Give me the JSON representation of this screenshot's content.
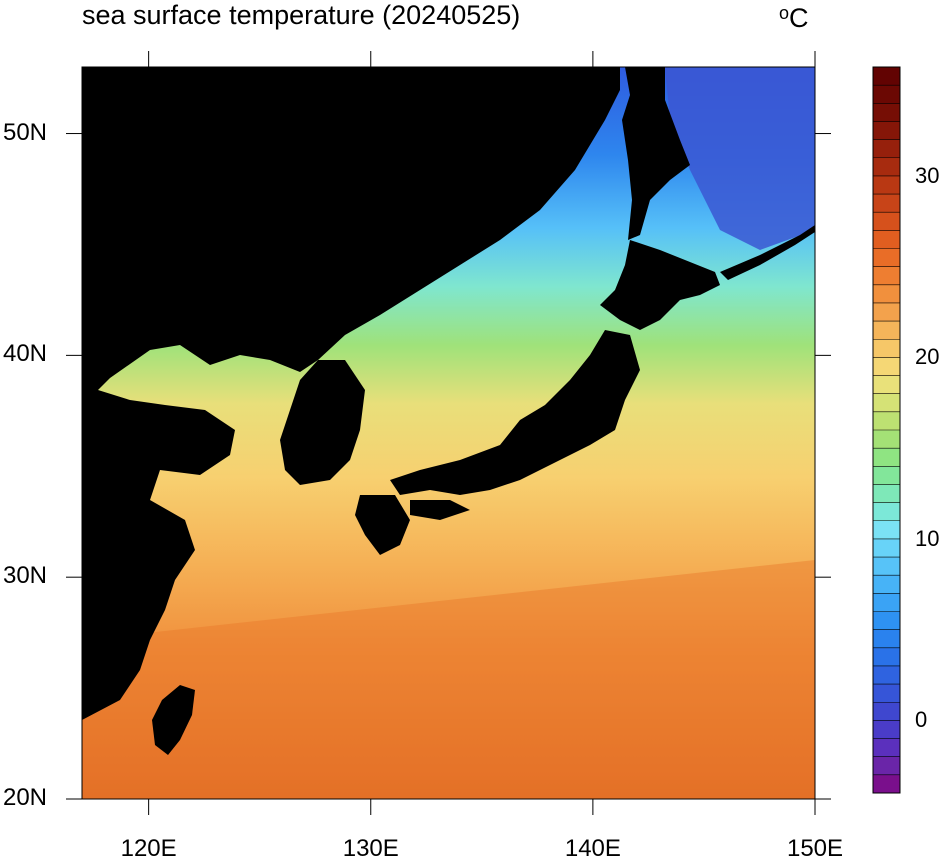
{
  "title": "sea surface temperature (20240525)",
  "units": {
    "degree_symbol": "o",
    "letter": "C"
  },
  "map": {
    "lon_range": [
      117,
      150
    ],
    "lat_range": [
      20,
      53
    ],
    "land_color": "#000000",
    "lat_ticks": [
      {
        "value": 20,
        "label": "20N"
      },
      {
        "value": 30,
        "label": "30N"
      },
      {
        "value": 40,
        "label": "40N"
      },
      {
        "value": 50,
        "label": "50N"
      }
    ],
    "lon_ticks": [
      {
        "value": 120,
        "label": "120E"
      },
      {
        "value": 130,
        "label": "130E"
      },
      {
        "value": 140,
        "label": "140E"
      },
      {
        "value": 150,
        "label": "150E"
      }
    ]
  },
  "colorbar": {
    "min": -4,
    "max": 36,
    "labels": [
      {
        "value": 0,
        "label": "0"
      },
      {
        "value": 10,
        "label": "10"
      },
      {
        "value": 20,
        "label": "20"
      },
      {
        "value": 30,
        "label": "30"
      }
    ],
    "colors": [
      "#7a0f8c",
      "#6a25a8",
      "#5b30bd",
      "#4a3cc8",
      "#3f47cf",
      "#3655d8",
      "#2f63e0",
      "#2a72e8",
      "#2a82ee",
      "#2e92f2",
      "#3aa3f5",
      "#47b3f7",
      "#57c3f8",
      "#68d3f8",
      "#7be2f5",
      "#7ce8d8",
      "#7ee8b8",
      "#82e69a",
      "#8fe482",
      "#a4e176",
      "#bde172",
      "#d5e276",
      "#e9e17a",
      "#f5d775",
      "#f6c768",
      "#f5b55a",
      "#f3a24c",
      "#f1903d",
      "#ee7e31",
      "#e96d27",
      "#e15e20",
      "#d6511c",
      "#c84418",
      "#b93813",
      "#a72b0f",
      "#96200c",
      "#851608",
      "#760e05",
      "#6b0803",
      "#620302"
    ]
  }
}
